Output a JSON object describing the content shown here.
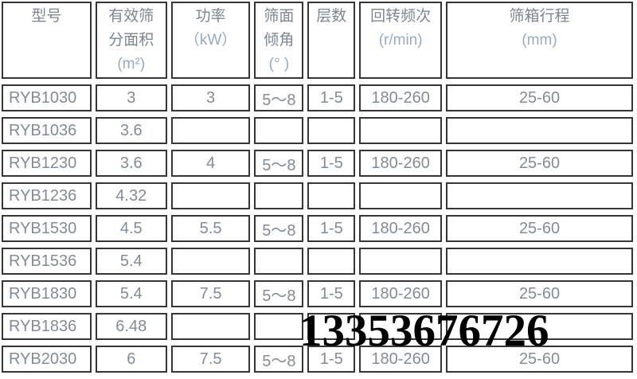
{
  "chart_data": {
    "type": "table",
    "title": "",
    "columns": [
      "型号",
      "有效筛分面积(m²)",
      "功率（kW）",
      "筛面倾角(° )",
      "层数",
      "回转频次(r/min)",
      "筛箱行程(mm)"
    ],
    "rows": [
      [
        "RYB1030",
        "3",
        "3",
        "5～8",
        "1-5",
        "180-260",
        "25-60"
      ],
      [
        "RYB1036",
        "3.6",
        "",
        "",
        "",
        "",
        ""
      ],
      [
        "RYB1230",
        "3.6",
        "4",
        "5～8",
        "1-5",
        "180-260",
        "25-60"
      ],
      [
        "RYB1236",
        "4.32",
        "",
        "",
        "",
        "",
        ""
      ],
      [
        "RYB1530",
        "4.5",
        "5.5",
        "5～8",
        "1-5",
        "180-260",
        "25-60"
      ],
      [
        "RYB1536",
        "5.4",
        "",
        "",
        "",
        "",
        ""
      ],
      [
        "RYB1830",
        "5.4",
        "7.5",
        "5～8",
        "1-5",
        "180-260",
        "25-60"
      ],
      [
        "RYB1836",
        "6.48",
        "",
        "",
        "",
        "",
        ""
      ],
      [
        "RYB2030",
        "6",
        "7.5",
        "5～8",
        "1-5",
        "180-260",
        "25-60"
      ]
    ]
  },
  "table": {
    "headers": [
      {
        "id": "model",
        "lines": [
          "型号"
        ],
        "unit_lines": []
      },
      {
        "id": "effective-area",
        "lines": [
          "有效筛",
          "分面积"
        ],
        "unit_lines": [
          "(m²)"
        ]
      },
      {
        "id": "power",
        "lines": [
          "功率"
        ],
        "unit_lines": [
          "（kW）"
        ]
      },
      {
        "id": "screen-incline",
        "lines": [
          "筛面",
          "倾角"
        ],
        "unit_lines": [
          "(°  )"
        ]
      },
      {
        "id": "layers",
        "lines": [
          "层数"
        ],
        "unit_lines": []
      },
      {
        "id": "rotation-frequency",
        "lines": [
          "回转频次"
        ],
        "unit_lines": [
          "(r/min)"
        ]
      },
      {
        "id": "screen-box-stroke",
        "lines": [
          "筛箱行程"
        ],
        "unit_lines": [
          "(mm)"
        ]
      }
    ]
  },
  "watermark": {
    "text": "13353676726"
  },
  "colors": {
    "border": "#363636",
    "header_text": "#7d8590",
    "cell_text": "#848b94",
    "unit_text": "#97a9c4",
    "watermark": "#000000",
    "background": "#ffffff"
  }
}
